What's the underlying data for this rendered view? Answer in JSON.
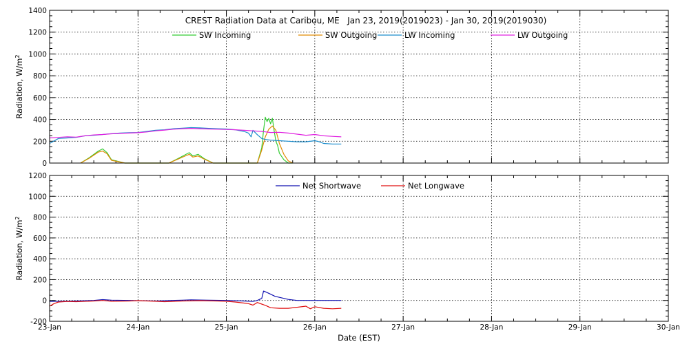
{
  "chart_data": [
    {
      "type": "line",
      "title": "CREST Radiation Data at Caribou, ME   Jan 23, 2019(2019023) - Jan 30, 2019(2019030)",
      "xlabel": "",
      "ylabel": "Radiation, W/m^2",
      "xlim": [
        0,
        7
      ],
      "ylim": [
        0,
        1400
      ],
      "yticks": [
        0,
        200,
        400,
        600,
        800,
        1000,
        1200,
        1400
      ],
      "grid": true,
      "legend": "top, horizontal",
      "series": [
        {
          "name": "SW Incoming",
          "color": "#33cc33",
          "x": [
            0.35,
            0.45,
            0.55,
            0.6,
            0.65,
            0.7,
            0.85,
            1.2,
            1.35,
            1.45,
            1.52,
            1.58,
            1.62,
            1.68,
            1.75,
            1.85,
            1.95,
            2.2,
            2.35,
            2.4,
            2.42,
            2.44,
            2.46,
            2.48,
            2.5,
            2.52,
            2.54,
            2.56,
            2.58,
            2.6,
            2.65,
            2.7,
            2.75
          ],
          "y": [
            0,
            50,
            110,
            130,
            95,
            30,
            0,
            0,
            0,
            40,
            70,
            95,
            65,
            80,
            40,
            0,
            0,
            0,
            0,
            140,
            300,
            420,
            380,
            410,
            360,
            410,
            300,
            200,
            160,
            90,
            30,
            0,
            0
          ]
        },
        {
          "name": "SW Outgoing",
          "color": "#e08a00",
          "x": [
            0.35,
            0.45,
            0.55,
            0.6,
            0.65,
            0.7,
            0.85,
            1.2,
            1.35,
            1.45,
            1.52,
            1.58,
            1.62,
            1.68,
            1.75,
            1.85,
            1.95,
            2.2,
            2.35,
            2.4,
            2.44,
            2.48,
            2.52,
            2.56,
            2.6,
            2.65,
            2.7,
            2.75
          ],
          "y": [
            0,
            45,
            100,
            110,
            85,
            25,
            0,
            0,
            0,
            35,
            60,
            80,
            55,
            65,
            35,
            0,
            0,
            0,
            0,
            120,
            240,
            310,
            340,
            300,
            180,
            80,
            20,
            0
          ]
        },
        {
          "name": "LW Incoming",
          "color": "#1a8ccc",
          "x": [
            0,
            0.1,
            0.2,
            0.3,
            0.4,
            0.5,
            0.6,
            0.7,
            0.8,
            0.9,
            1.0,
            1.1,
            1.2,
            1.3,
            1.4,
            1.5,
            1.6,
            1.7,
            1.8,
            1.9,
            2.0,
            2.1,
            2.2,
            2.25,
            2.28,
            2.3,
            2.35,
            2.4,
            2.45,
            2.5,
            2.6,
            2.7,
            2.8,
            2.9,
            3.0,
            3.05,
            3.1,
            3.2,
            3.3
          ],
          "y": [
            180,
            225,
            230,
            235,
            250,
            255,
            262,
            270,
            275,
            278,
            280,
            290,
            300,
            305,
            315,
            320,
            325,
            322,
            318,
            315,
            312,
            305,
            290,
            275,
            240,
            300,
            260,
            225,
            215,
            210,
            205,
            200,
            195,
            195,
            205,
            195,
            180,
            175,
            175
          ]
        },
        {
          "name": "LW Outgoing",
          "color": "#e020e0",
          "x": [
            0,
            0.1,
            0.2,
            0.3,
            0.4,
            0.5,
            0.6,
            0.7,
            0.8,
            0.9,
            1.0,
            1.1,
            1.2,
            1.3,
            1.4,
            1.5,
            1.6,
            1.7,
            1.8,
            1.9,
            2.0,
            2.1,
            2.2,
            2.3,
            2.4,
            2.45,
            2.5,
            2.6,
            2.7,
            2.8,
            2.9,
            3.0,
            3.1,
            3.2,
            3.3
          ],
          "y": [
            230,
            235,
            240,
            238,
            250,
            258,
            262,
            268,
            272,
            275,
            278,
            285,
            295,
            302,
            310,
            315,
            318,
            315,
            312,
            310,
            308,
            305,
            300,
            295,
            290,
            285,
            280,
            282,
            275,
            265,
            255,
            262,
            250,
            245,
            240
          ]
        }
      ]
    },
    {
      "type": "line",
      "title": "",
      "xlabel": "Date (EST)",
      "ylabel": "Radiation, W/m^2",
      "xlim": [
        0,
        7
      ],
      "ylim": [
        -200,
        1200
      ],
      "yticks": [
        -200,
        0,
        200,
        400,
        600,
        800,
        1000,
        1200
      ],
      "xtick_labels": [
        "23-Jan",
        "24-Jan",
        "25-Jan",
        "26-Jan",
        "27-Jan",
        "28-Jan",
        "29-Jan",
        "30-Jan"
      ],
      "grid": true,
      "legend": "top, horizontal",
      "series": [
        {
          "name": "Net Shortwave",
          "color": "#1010b0",
          "x": [
            0,
            0.3,
            0.5,
            0.6,
            0.7,
            0.9,
            1.2,
            1.5,
            1.6,
            1.8,
            2.0,
            2.2,
            2.3,
            2.35,
            2.4,
            2.42,
            2.45,
            2.5,
            2.55,
            2.6,
            2.65,
            2.7,
            2.8,
            3.0,
            3.2,
            3.3
          ],
          "y": [
            -10,
            -5,
            0,
            8,
            3,
            0,
            -5,
            3,
            6,
            2,
            0,
            -5,
            -10,
            0,
            20,
            90,
            80,
            60,
            40,
            30,
            20,
            10,
            0,
            0,
            0,
            0
          ]
        },
        {
          "name": "Net Longwave",
          "color": "#e01010",
          "x": [
            0,
            0.05,
            0.1,
            0.2,
            0.3,
            0.5,
            0.6,
            0.7,
            0.9,
            1.0,
            1.2,
            1.3,
            1.5,
            1.7,
            1.9,
            2.0,
            2.1,
            2.2,
            2.25,
            2.3,
            2.35,
            2.4,
            2.45,
            2.5,
            2.6,
            2.7,
            2.8,
            2.9,
            2.95,
            3.0,
            3.1,
            3.2,
            3.3
          ],
          "y": [
            -55,
            -30,
            -15,
            -10,
            -12,
            -5,
            0,
            -8,
            -5,
            -2,
            -8,
            -12,
            -5,
            -2,
            -5,
            -8,
            -15,
            -25,
            -30,
            -45,
            -20,
            -35,
            -50,
            -70,
            -75,
            -75,
            -65,
            -55,
            -80,
            -60,
            -75,
            -80,
            -75
          ]
        }
      ]
    }
  ]
}
